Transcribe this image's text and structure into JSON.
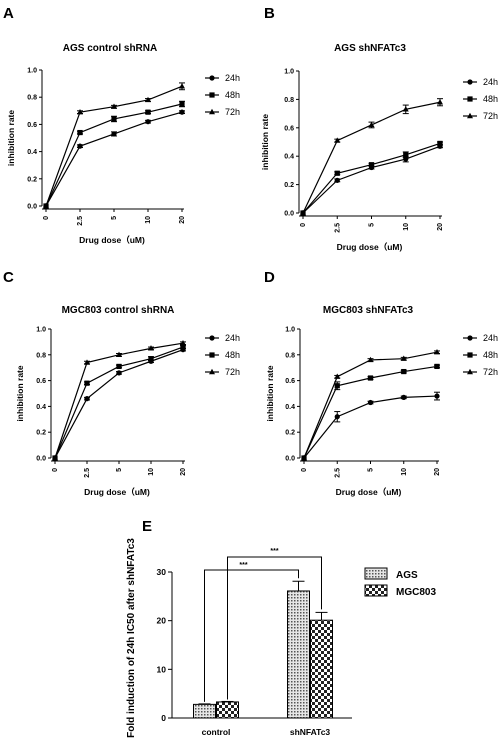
{
  "chart_data": [
    {
      "type": "line",
      "panel": "A",
      "title": "AGS control shRNA",
      "xlabel": "Drug dose（uM)",
      "ylabel": "inhibition rate",
      "categories": [
        "0",
        "2.5",
        "5",
        "10",
        "20"
      ],
      "ylim": [
        0,
        1.0
      ],
      "yticks": [
        "0.0",
        "0.2",
        "0.4",
        "0.6",
        "0.8",
        "1.0"
      ],
      "legend_position": "right",
      "grid": false,
      "series": [
        {
          "name": "24h",
          "marker": "circle",
          "values": [
            0,
            0.44,
            0.53,
            0.62,
            0.69
          ],
          "errors": [
            0,
            0.01,
            0.015,
            0.01,
            0.01
          ]
        },
        {
          "name": "48h",
          "marker": "square",
          "values": [
            0,
            0.54,
            0.64,
            0.69,
            0.75
          ],
          "errors": [
            0,
            0.01,
            0.02,
            0.01,
            0.02
          ]
        },
        {
          "name": "72h",
          "marker": "triangle",
          "values": [
            0,
            0.69,
            0.73,
            0.78,
            0.88
          ],
          "errors": [
            0,
            0.01,
            0.01,
            0.01,
            0.025
          ]
        }
      ]
    },
    {
      "type": "line",
      "panel": "B",
      "title": "AGS shNFATc3",
      "xlabel": "Drug dose（uM)",
      "ylabel": "inhibition rate",
      "categories": [
        "0",
        "2.5",
        "5",
        "10",
        "20"
      ],
      "ylim": [
        0,
        1.0
      ],
      "yticks": [
        "0.0",
        "0.2",
        "0.4",
        "0.6",
        "0.8",
        "1.0"
      ],
      "legend_position": "right",
      "grid": false,
      "series": [
        {
          "name": "24h",
          "marker": "circle",
          "values": [
            0,
            0.23,
            0.32,
            0.38,
            0.47
          ],
          "errors": [
            0,
            0.01,
            0.01,
            0.02,
            0.01
          ]
        },
        {
          "name": "48h",
          "marker": "square",
          "values": [
            0,
            0.28,
            0.34,
            0.41,
            0.49
          ],
          "errors": [
            0,
            0.01,
            0.01,
            0.02,
            0.01
          ]
        },
        {
          "name": "72h",
          "marker": "triangle",
          "values": [
            0,
            0.51,
            0.62,
            0.73,
            0.78
          ],
          "errors": [
            0,
            0.01,
            0.02,
            0.03,
            0.025
          ]
        }
      ]
    },
    {
      "type": "line",
      "panel": "C",
      "title": "MGC803 control shRNA",
      "xlabel": "Drug dose（uM)",
      "ylabel": "inhibition rate",
      "categories": [
        "0",
        "2.5",
        "5",
        "10",
        "20"
      ],
      "ylim": [
        0,
        1.0
      ],
      "yticks": [
        "0.0",
        "0.2",
        "0.4",
        "0.6",
        "0.8",
        "1.0"
      ],
      "legend_position": "right",
      "grid": false,
      "series": [
        {
          "name": "24h",
          "marker": "circle",
          "values": [
            0,
            0.46,
            0.66,
            0.75,
            0.84
          ],
          "errors": [
            0,
            0.01,
            0.01,
            0.01,
            0.01
          ]
        },
        {
          "name": "48h",
          "marker": "square",
          "values": [
            0,
            0.58,
            0.71,
            0.77,
            0.86
          ],
          "errors": [
            0,
            0.01,
            0.01,
            0.015,
            0.01
          ]
        },
        {
          "name": "72h",
          "marker": "triangle",
          "values": [
            0,
            0.74,
            0.8,
            0.85,
            0.89
          ],
          "errors": [
            0,
            0.01,
            0.01,
            0.01,
            0.01
          ]
        }
      ]
    },
    {
      "type": "line",
      "panel": "D",
      "title": "MGC803 shNFATc3",
      "xlabel": "Drug dose（uM)",
      "ylabel": "inhibition rate",
      "categories": [
        "0",
        "2.5",
        "5",
        "10",
        "20"
      ],
      "ylim": [
        0,
        1.0
      ],
      "yticks": [
        "0.0",
        "0.2",
        "0.4",
        "0.6",
        "0.8",
        "1.0"
      ],
      "legend_position": "right",
      "grid": false,
      "series": [
        {
          "name": "24h",
          "marker": "circle",
          "values": [
            0,
            0.32,
            0.43,
            0.47,
            0.48
          ],
          "errors": [
            0,
            0.04,
            0.01,
            0.01,
            0.03
          ]
        },
        {
          "name": "48h",
          "marker": "square",
          "values": [
            0,
            0.56,
            0.62,
            0.67,
            0.71
          ],
          "errors": [
            0,
            0.03,
            0.01,
            0.01,
            0.01
          ]
        },
        {
          "name": "72h",
          "marker": "triangle",
          "values": [
            0,
            0.63,
            0.76,
            0.77,
            0.82
          ],
          "errors": [
            0,
            0.01,
            0.01,
            0.01,
            0.01
          ]
        }
      ]
    },
    {
      "type": "bar",
      "panel": "E",
      "title": "",
      "xlabel": "",
      "ylabel": "Fold induction of 24h IC50 after shNFATc3",
      "categories": [
        "control",
        "shNFATc3"
      ],
      "ylim": [
        0,
        30
      ],
      "yticks": [
        "0",
        "10",
        "20",
        "30"
      ],
      "legend_position": "right",
      "grid": false,
      "series": [
        {
          "name": "AGS",
          "pattern": "dense-dots",
          "values": [
            2.8,
            26.1
          ],
          "errors": [
            0.1,
            2.0
          ]
        },
        {
          "name": "MGC803",
          "pattern": "checker",
          "values": [
            3.3,
            20.1
          ],
          "errors": [
            0.1,
            1.6
          ]
        }
      ],
      "annotations": [
        "***",
        "***"
      ]
    }
  ]
}
